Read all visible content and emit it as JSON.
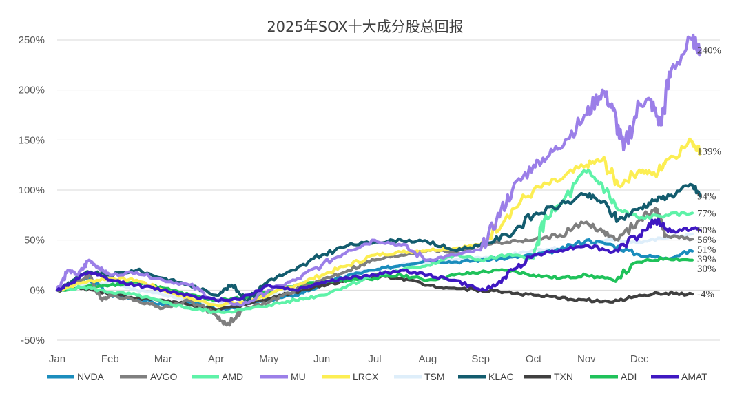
{
  "chart_data": {
    "type": "line",
    "title": "2025年SOX十大成分股总回报",
    "xlabel": "",
    "ylabel": "",
    "ylim": [
      -50,
      250
    ],
    "yticks": [
      -50,
      0,
      50,
      100,
      150,
      200,
      250
    ],
    "ytick_labels": [
      "-50%",
      "0%",
      "50%",
      "100%",
      "150%",
      "200%",
      "250%"
    ],
    "x_range": [
      0,
      12
    ],
    "x_ticks": [
      {
        "label": "Jan",
        "x": 0
      },
      {
        "label": "Feb",
        "x": 1
      },
      {
        "label": "Mar",
        "x": 2
      },
      {
        "label": "Apr",
        "x": 3
      },
      {
        "label": "May",
        "x": 4
      },
      {
        "label": "Jun",
        "x": 5
      },
      {
        "label": "Jul",
        "x": 6
      },
      {
        "label": "Aug",
        "x": 7
      },
      {
        "label": "Sep",
        "x": 8
      },
      {
        "label": "Oct",
        "x": 9
      },
      {
        "label": "Nov",
        "x": 10
      },
      {
        "label": "Dec",
        "x": 11
      }
    ],
    "grid": true,
    "legend": "bottom",
    "series": [
      {
        "name": "NVDA",
        "color": "#1b8dbd",
        "end_label": "39%",
        "points": [
          [
            0,
            0
          ],
          [
            0.3,
            5
          ],
          [
            0.6,
            12
          ],
          [
            1,
            -5
          ],
          [
            1.5,
            -8
          ],
          [
            2,
            -15
          ],
          [
            2.5,
            -12
          ],
          [
            3,
            -20
          ],
          [
            3.5,
            -15
          ],
          [
            4,
            -10
          ],
          [
            4.5,
            -5
          ],
          [
            5,
            5
          ],
          [
            5.5,
            15
          ],
          [
            6,
            20
          ],
          [
            6.5,
            25
          ],
          [
            7,
            30
          ],
          [
            7.5,
            28
          ],
          [
            8,
            30
          ],
          [
            8.5,
            32
          ],
          [
            9,
            35
          ],
          [
            9.5,
            40
          ],
          [
            10,
            50
          ],
          [
            10.5,
            45
          ],
          [
            11,
            35
          ],
          [
            11.5,
            32
          ],
          [
            12,
            39
          ]
        ]
      },
      {
        "name": "AVGO",
        "color": "#7f7f7f",
        "end_label": "51%",
        "points": [
          [
            0,
            0
          ],
          [
            0.3,
            5
          ],
          [
            0.6,
            15
          ],
          [
            0.85,
            -10
          ],
          [
            1,
            -5
          ],
          [
            1.5,
            -10
          ],
          [
            2,
            -18
          ],
          [
            2.5,
            -10
          ],
          [
            3,
            -25
          ],
          [
            3.2,
            -35
          ],
          [
            3.5,
            -20
          ],
          [
            4,
            -12
          ],
          [
            4.5,
            0
          ],
          [
            5,
            10
          ],
          [
            5.5,
            20
          ],
          [
            6,
            30
          ],
          [
            6.5,
            35
          ],
          [
            7,
            40
          ],
          [
            7.5,
            38
          ],
          [
            8,
            45
          ],
          [
            8.5,
            48
          ],
          [
            9,
            50
          ],
          [
            9.5,
            55
          ],
          [
            10,
            68
          ],
          [
            10.3,
            58
          ],
          [
            10.6,
            50
          ],
          [
            11,
            70
          ],
          [
            11.3,
            82
          ],
          [
            11.5,
            55
          ],
          [
            12,
            51
          ]
        ]
      },
      {
        "name": "AMD",
        "color": "#5ef2a8",
        "end_label": "77%",
        "points": [
          [
            0,
            0
          ],
          [
            0.5,
            3
          ],
          [
            1,
            -2
          ],
          [
            1.5,
            -5
          ],
          [
            2,
            -12
          ],
          [
            2.5,
            -18
          ],
          [
            3,
            -22
          ],
          [
            3.5,
            -20
          ],
          [
            4,
            -15
          ],
          [
            4.5,
            -10
          ],
          [
            5,
            -5
          ],
          [
            5.5,
            5
          ],
          [
            6,
            15
          ],
          [
            6.5,
            20
          ],
          [
            7,
            25
          ],
          [
            7.5,
            35
          ],
          [
            8,
            30
          ],
          [
            8.5,
            35
          ],
          [
            9,
            32
          ],
          [
            9.2,
            70
          ],
          [
            9.5,
            85
          ],
          [
            10,
            118
          ],
          [
            10.3,
            105
          ],
          [
            10.6,
            80
          ],
          [
            11,
            72
          ],
          [
            11.5,
            75
          ],
          [
            12,
            77
          ]
        ]
      },
      {
        "name": "MU",
        "color": "#9b7fe8",
        "end_label": "240%",
        "points": [
          [
            0,
            0
          ],
          [
            0.2,
            20
          ],
          [
            0.4,
            15
          ],
          [
            0.6,
            30
          ],
          [
            0.8,
            22
          ],
          [
            1,
            15
          ],
          [
            1.5,
            18
          ],
          [
            2,
            10
          ],
          [
            2.5,
            5
          ],
          [
            3,
            -10
          ],
          [
            3.5,
            -15
          ],
          [
            4,
            0
          ],
          [
            4.5,
            10
          ],
          [
            5,
            25
          ],
          [
            5.5,
            40
          ],
          [
            6,
            50
          ],
          [
            6.5,
            45
          ],
          [
            7,
            30
          ],
          [
            7.5,
            35
          ],
          [
            8,
            40
          ],
          [
            8.3,
            70
          ],
          [
            8.6,
            100
          ],
          [
            9,
            125
          ],
          [
            9.3,
            135
          ],
          [
            9.6,
            150
          ],
          [
            10,
            175
          ],
          [
            10.3,
            200
          ],
          [
            10.5,
            180
          ],
          [
            10.7,
            140
          ],
          [
            11,
            185
          ],
          [
            11.2,
            190
          ],
          [
            11.4,
            165
          ],
          [
            11.6,
            220
          ],
          [
            12,
            250
          ],
          [
            12.15,
            240
          ]
        ]
      },
      {
        "name": "LRCX",
        "color": "#fcee53",
        "end_label": "139%",
        "points": [
          [
            0,
            0
          ],
          [
            0.5,
            8
          ],
          [
            1,
            12
          ],
          [
            1.5,
            10
          ],
          [
            2,
            0
          ],
          [
            2.5,
            -8
          ],
          [
            3,
            -15
          ],
          [
            3.5,
            -12
          ],
          [
            4,
            -5
          ],
          [
            4.5,
            5
          ],
          [
            5,
            15
          ],
          [
            5.5,
            25
          ],
          [
            6,
            35
          ],
          [
            6.5,
            38
          ],
          [
            7,
            40
          ],
          [
            7.5,
            42
          ],
          [
            8,
            45
          ],
          [
            8.5,
            75
          ],
          [
            9,
            100
          ],
          [
            9.5,
            110
          ],
          [
            10,
            125
          ],
          [
            10.3,
            130
          ],
          [
            10.6,
            105
          ],
          [
            11,
            120
          ],
          [
            11.3,
            115
          ],
          [
            11.5,
            130
          ],
          [
            12,
            148
          ],
          [
            12.15,
            139
          ]
        ]
      },
      {
        "name": "TSM",
        "color": "#deeefa",
        "end_label": "56%",
        "points": [
          [
            0,
            0
          ],
          [
            0.5,
            5
          ],
          [
            1,
            8
          ],
          [
            1.5,
            0
          ],
          [
            2,
            -5
          ],
          [
            2.5,
            -10
          ],
          [
            3,
            -15
          ],
          [
            3.5,
            -12
          ],
          [
            4,
            -5
          ],
          [
            4.5,
            0
          ],
          [
            5,
            5
          ],
          [
            5.5,
            15
          ],
          [
            6,
            20
          ],
          [
            6.5,
            25
          ],
          [
            7,
            28
          ],
          [
            7.5,
            30
          ],
          [
            8,
            32
          ],
          [
            8.5,
            35
          ],
          [
            9,
            40
          ],
          [
            9.5,
            42
          ],
          [
            10,
            45
          ],
          [
            10.5,
            50
          ],
          [
            11,
            48
          ],
          [
            11.5,
            52
          ],
          [
            12,
            56
          ]
        ]
      },
      {
        "name": "KLAC",
        "color": "#135c6e",
        "end_label": "94%",
        "points": [
          [
            0,
            0
          ],
          [
            0.3,
            10
          ],
          [
            0.6,
            18
          ],
          [
            1,
            15
          ],
          [
            1.5,
            20
          ],
          [
            2,
            12
          ],
          [
            2.5,
            5
          ],
          [
            3,
            -5
          ],
          [
            3.3,
            5
          ],
          [
            3.6,
            -10
          ],
          [
            4,
            10
          ],
          [
            4.5,
            20
          ],
          [
            5,
            35
          ],
          [
            5.5,
            45
          ],
          [
            6,
            48
          ],
          [
            6.5,
            50
          ],
          [
            7,
            48
          ],
          [
            7.5,
            40
          ],
          [
            8,
            45
          ],
          [
            8.5,
            55
          ],
          [
            9,
            75
          ],
          [
            9.5,
            85
          ],
          [
            10,
            95
          ],
          [
            10.3,
            88
          ],
          [
            10.6,
            70
          ],
          [
            11,
            82
          ],
          [
            11.3,
            90
          ],
          [
            11.6,
            95
          ],
          [
            12,
            105
          ],
          [
            12.15,
            94
          ]
        ]
      },
      {
        "name": "TXN",
        "color": "#404040",
        "end_label": "-4%",
        "points": [
          [
            0,
            0
          ],
          [
            0.5,
            2
          ],
          [
            1,
            -3
          ],
          [
            1.5,
            -8
          ],
          [
            2,
            -10
          ],
          [
            2.5,
            -15
          ],
          [
            3,
            -20
          ],
          [
            3.5,
            -15
          ],
          [
            4,
            -8
          ],
          [
            4.5,
            -2
          ],
          [
            5,
            5
          ],
          [
            5.5,
            10
          ],
          [
            6,
            15
          ],
          [
            6.5,
            12
          ],
          [
            7,
            5
          ],
          [
            7.5,
            2
          ],
          [
            8,
            0
          ],
          [
            8.5,
            -2
          ],
          [
            9,
            -5
          ],
          [
            9.5,
            -8
          ],
          [
            10,
            -10
          ],
          [
            10.5,
            -12
          ],
          [
            11,
            -5
          ],
          [
            11.5,
            -3
          ],
          [
            12,
            -4
          ]
        ]
      },
      {
        "name": "ADI",
        "color": "#1fc25a",
        "end_label": "30%",
        "points": [
          [
            0,
            0
          ],
          [
            0.5,
            3
          ],
          [
            1,
            5
          ],
          [
            1.5,
            8
          ],
          [
            2,
            2
          ],
          [
            2.5,
            -5
          ],
          [
            3,
            -10
          ],
          [
            3.5,
            -8
          ],
          [
            4,
            -2
          ],
          [
            4.5,
            5
          ],
          [
            5,
            8
          ],
          [
            5.5,
            10
          ],
          [
            6,
            12
          ],
          [
            6.5,
            15
          ],
          [
            7,
            10
          ],
          [
            7.5,
            15
          ],
          [
            8,
            18
          ],
          [
            8.5,
            20
          ],
          [
            9,
            15
          ],
          [
            9.5,
            12
          ],
          [
            10,
            15
          ],
          [
            10.5,
            10
          ],
          [
            11,
            28
          ],
          [
            11.5,
            32
          ],
          [
            12,
            30
          ]
        ]
      },
      {
        "name": "AMAT",
        "color": "#3f18c2",
        "end_label": "60%",
        "points": [
          [
            0,
            0
          ],
          [
            0.3,
            8
          ],
          [
            0.6,
            18
          ],
          [
            1,
            10
          ],
          [
            1.5,
            5
          ],
          [
            2,
            0
          ],
          [
            2.5,
            -5
          ],
          [
            3,
            -10
          ],
          [
            3.5,
            -8
          ],
          [
            4,
            5
          ],
          [
            4.5,
            0
          ],
          [
            5,
            8
          ],
          [
            5.5,
            12
          ],
          [
            6,
            15
          ],
          [
            6.5,
            20
          ],
          [
            7,
            15
          ],
          [
            7.5,
            10
          ],
          [
            8,
            0
          ],
          [
            8.3,
            5
          ],
          [
            8.6,
            20
          ],
          [
            9,
            35
          ],
          [
            9.5,
            40
          ],
          [
            10,
            45
          ],
          [
            10.5,
            38
          ],
          [
            11,
            55
          ],
          [
            11.3,
            70
          ],
          [
            11.6,
            58
          ],
          [
            12,
            62
          ],
          [
            12.15,
            60
          ]
        ]
      }
    ]
  }
}
